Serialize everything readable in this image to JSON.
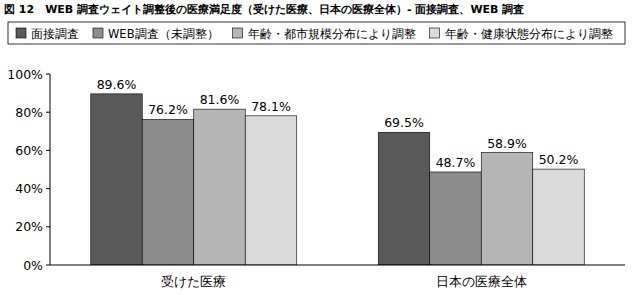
{
  "chart_data": {
    "type": "bar",
    "title": "図 12　WEB 調査ウェイト調整後の医療満足度（受けた医療、日本の医療全体）- 面接調査、WEB 調査",
    "categories": [
      "受けた医療",
      "日本の医療全体"
    ],
    "series": [
      {
        "name": "面接調査",
        "color": "#595959",
        "values": [
          89.6,
          69.5
        ],
        "value_labels": [
          "89.6%",
          "69.5%"
        ]
      },
      {
        "name": "WEB調査（未調整）",
        "color": "#8c8c8c",
        "values": [
          76.2,
          48.7
        ],
        "value_labels": [
          "76.2%",
          "48.7%"
        ]
      },
      {
        "name": "年齢・都市規模分布により調整",
        "color": "#b5b5b5",
        "values": [
          81.6,
          58.9
        ],
        "value_labels": [
          "81.6%",
          "58.9%"
        ]
      },
      {
        "name": "年齢・健康状態分布により調整",
        "color": "#dadada",
        "values": [
          78.1,
          50.2
        ],
        "value_labels": [
          "78.1%",
          "50.2%"
        ]
      }
    ],
    "ylim": [
      0,
      100
    ],
    "yticks": [
      {
        "value": 0,
        "label": "0%"
      },
      {
        "value": 20,
        "label": "20%"
      },
      {
        "value": 40,
        "label": "40%"
      },
      {
        "value": 60,
        "label": "60%"
      },
      {
        "value": 80,
        "label": "80%"
      },
      {
        "value": 100,
        "label": "100%"
      }
    ],
    "grid": false,
    "legend": "top",
    "data_labels": true
  }
}
